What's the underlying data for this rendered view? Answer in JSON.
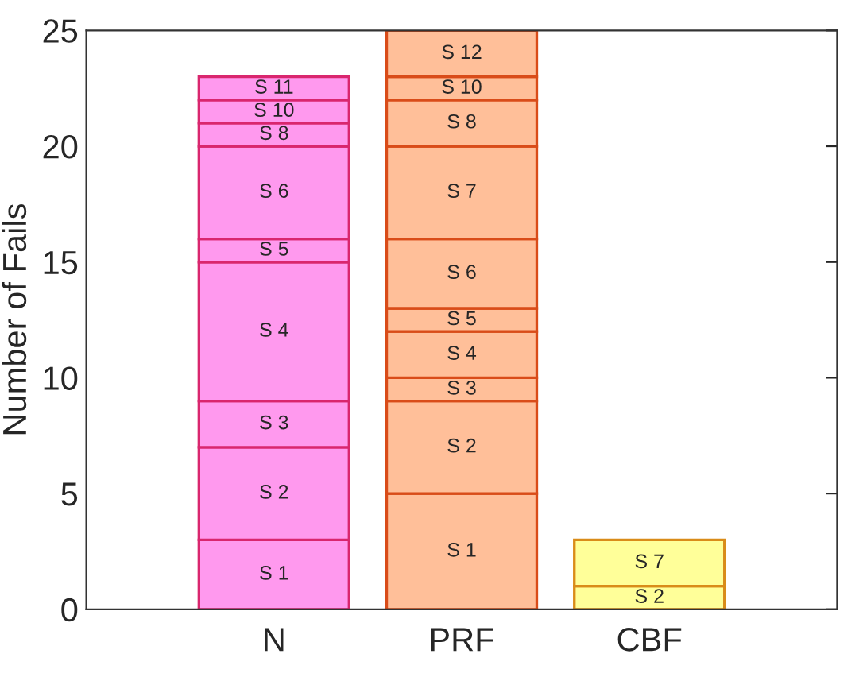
{
  "chart_data": {
    "type": "bar",
    "stacked": true,
    "ylabel": "Number of Fails",
    "categories": [
      "N",
      "PRF",
      "CBF"
    ],
    "series": [
      {
        "name": "S 1",
        "values": [
          3,
          5,
          null
        ],
        "colors": [
          "#ff99ee",
          "#ffbf99",
          null
        ]
      },
      {
        "name": "S 2",
        "values": [
          4,
          4,
          1
        ],
        "colors": [
          "#ff99ee",
          "#ffbf99",
          "#ffff99"
        ]
      },
      {
        "name": "S 3",
        "values": [
          2,
          1,
          null
        ],
        "colors": [
          "#ff99ee",
          "#ffbf99",
          null
        ]
      },
      {
        "name": "S 4",
        "values": [
          6,
          2,
          null
        ],
        "colors": [
          "#ff99ee",
          "#ffbf99",
          null
        ]
      },
      {
        "name": "S 5",
        "values": [
          1,
          1,
          null
        ],
        "colors": [
          "#ff99ee",
          "#ffbf99",
          null
        ]
      },
      {
        "name": "S 6",
        "values": [
          4,
          3,
          null
        ],
        "colors": [
          "#ff99ee",
          "#ffbf99",
          null
        ]
      },
      {
        "name": "S 7",
        "values": [
          null,
          4,
          2
        ],
        "colors": [
          null,
          "#ffbf99",
          "#ffff99"
        ]
      },
      {
        "name": "S 8",
        "values": [
          1,
          2,
          null
        ],
        "colors": [
          "#ff99ee",
          "#ffbf99",
          null
        ]
      },
      {
        "name": "S 10",
        "values": [
          1,
          1,
          null
        ],
        "colors": [
          "#ff99ee",
          "#ffbf99",
          null
        ]
      },
      {
        "name": "S 11",
        "values": [
          1,
          null,
          null
        ],
        "colors": [
          "#ff99ee",
          null,
          null
        ]
      },
      {
        "name": "S 12",
        "values": [
          null,
          2,
          null
        ],
        "colors": [
          null,
          "#ffbf99",
          null
        ]
      }
    ],
    "ylim": [
      0,
      25
    ],
    "yticks": [
      0,
      5,
      10,
      15,
      20,
      25
    ],
    "grid": false,
    "legend": false
  }
}
